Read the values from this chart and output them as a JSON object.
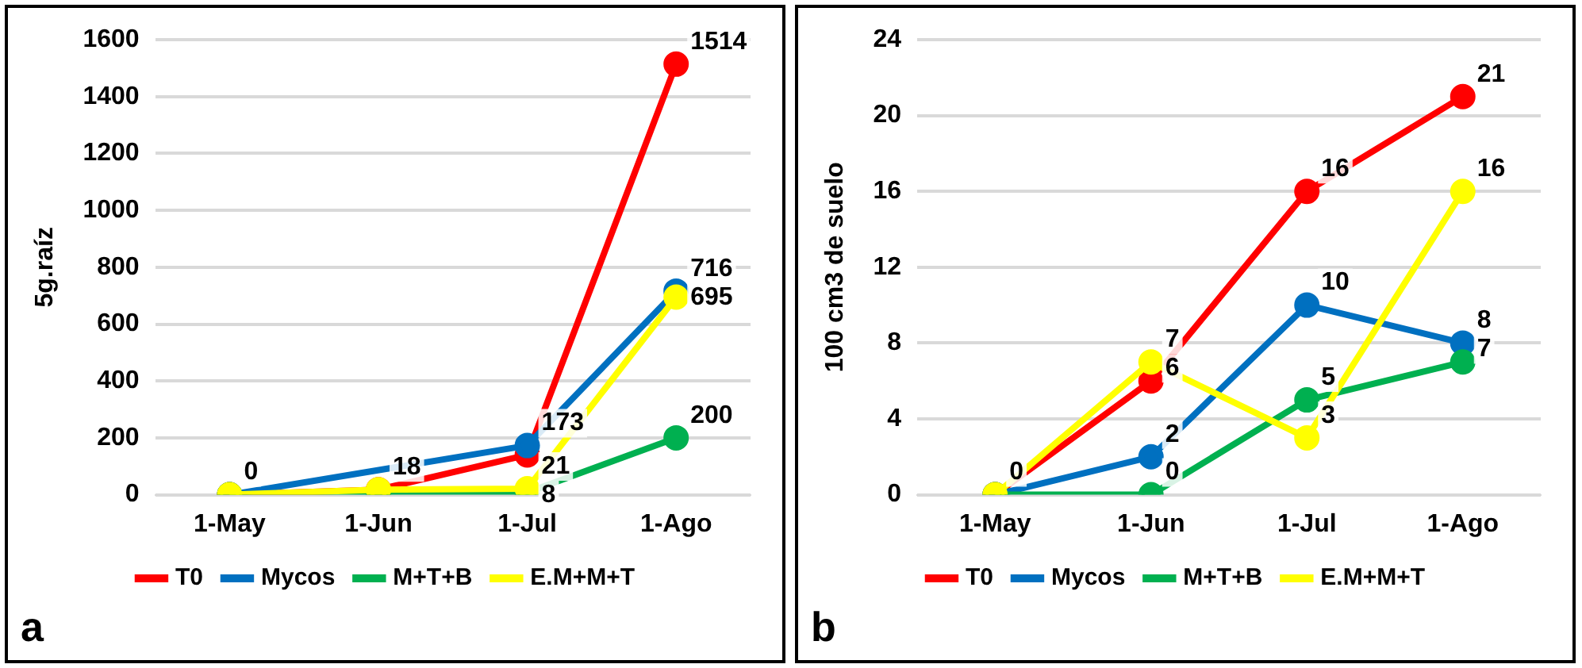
{
  "chart_data": [
    {
      "type": "line",
      "ylabel": "5g.raíz",
      "categories": [
        "1-May",
        "1-Jun",
        "1-Jul",
        "1-Ago"
      ],
      "ylim": [
        0,
        1600
      ],
      "yticks": [
        0,
        200,
        400,
        600,
        800,
        1000,
        1200,
        1400,
        1600
      ],
      "grid": "y",
      "legend": "bottom",
      "marker": "circle",
      "annotations": [
        "a"
      ],
      "series": [
        {
          "name": "T0",
          "color": "#ff0000",
          "values": [
            0,
            18,
            140,
            1514
          ],
          "value_labels": [
            "0",
            "18",
            null,
            "1514"
          ]
        },
        {
          "name": "Mycos",
          "color": "#0070c0",
          "values": [
            0,
            null,
            173,
            716
          ],
          "value_labels": [
            null,
            null,
            "173",
            "716"
          ]
        },
        {
          "name": "M+T+B",
          "color": "#00b050",
          "values": [
            0,
            3,
            8,
            200
          ],
          "value_labels": [
            null,
            null,
            "8",
            "200"
          ]
        },
        {
          "name": "E.M+M+T",
          "color": "#ffff00",
          "values": [
            0,
            18,
            21,
            695
          ],
          "value_labels": [
            null,
            null,
            "21",
            "695"
          ]
        }
      ]
    },
    {
      "type": "line",
      "ylabel": "100 cm3 de suelo",
      "categories": [
        "1-May",
        "1-Jun",
        "1-Jul",
        "1-Ago"
      ],
      "ylim": [
        0,
        24
      ],
      "yticks": [
        0,
        4,
        8,
        12,
        16,
        20,
        24
      ],
      "grid": "y",
      "legend": "bottom",
      "marker": "circle",
      "annotations": [
        "b"
      ],
      "series": [
        {
          "name": "T0",
          "color": "#ff0000",
          "values": [
            0,
            6,
            16,
            21
          ],
          "value_labels": [
            null,
            "6",
            "16",
            "21"
          ]
        },
        {
          "name": "Mycos",
          "color": "#0070c0",
          "values": [
            0,
            2,
            10,
            8
          ],
          "value_labels": [
            null,
            "2",
            "10",
            "8"
          ]
        },
        {
          "name": "M+T+B",
          "color": "#00b050",
          "values": [
            0,
            0,
            5,
            7
          ],
          "value_labels": [
            null,
            "0",
            "5",
            "7"
          ]
        },
        {
          "name": "E.M+M+T",
          "color": "#ffff00",
          "values": [
            0,
            7,
            3,
            16
          ],
          "value_labels": [
            "0",
            "7",
            "3",
            "16"
          ]
        }
      ]
    }
  ]
}
